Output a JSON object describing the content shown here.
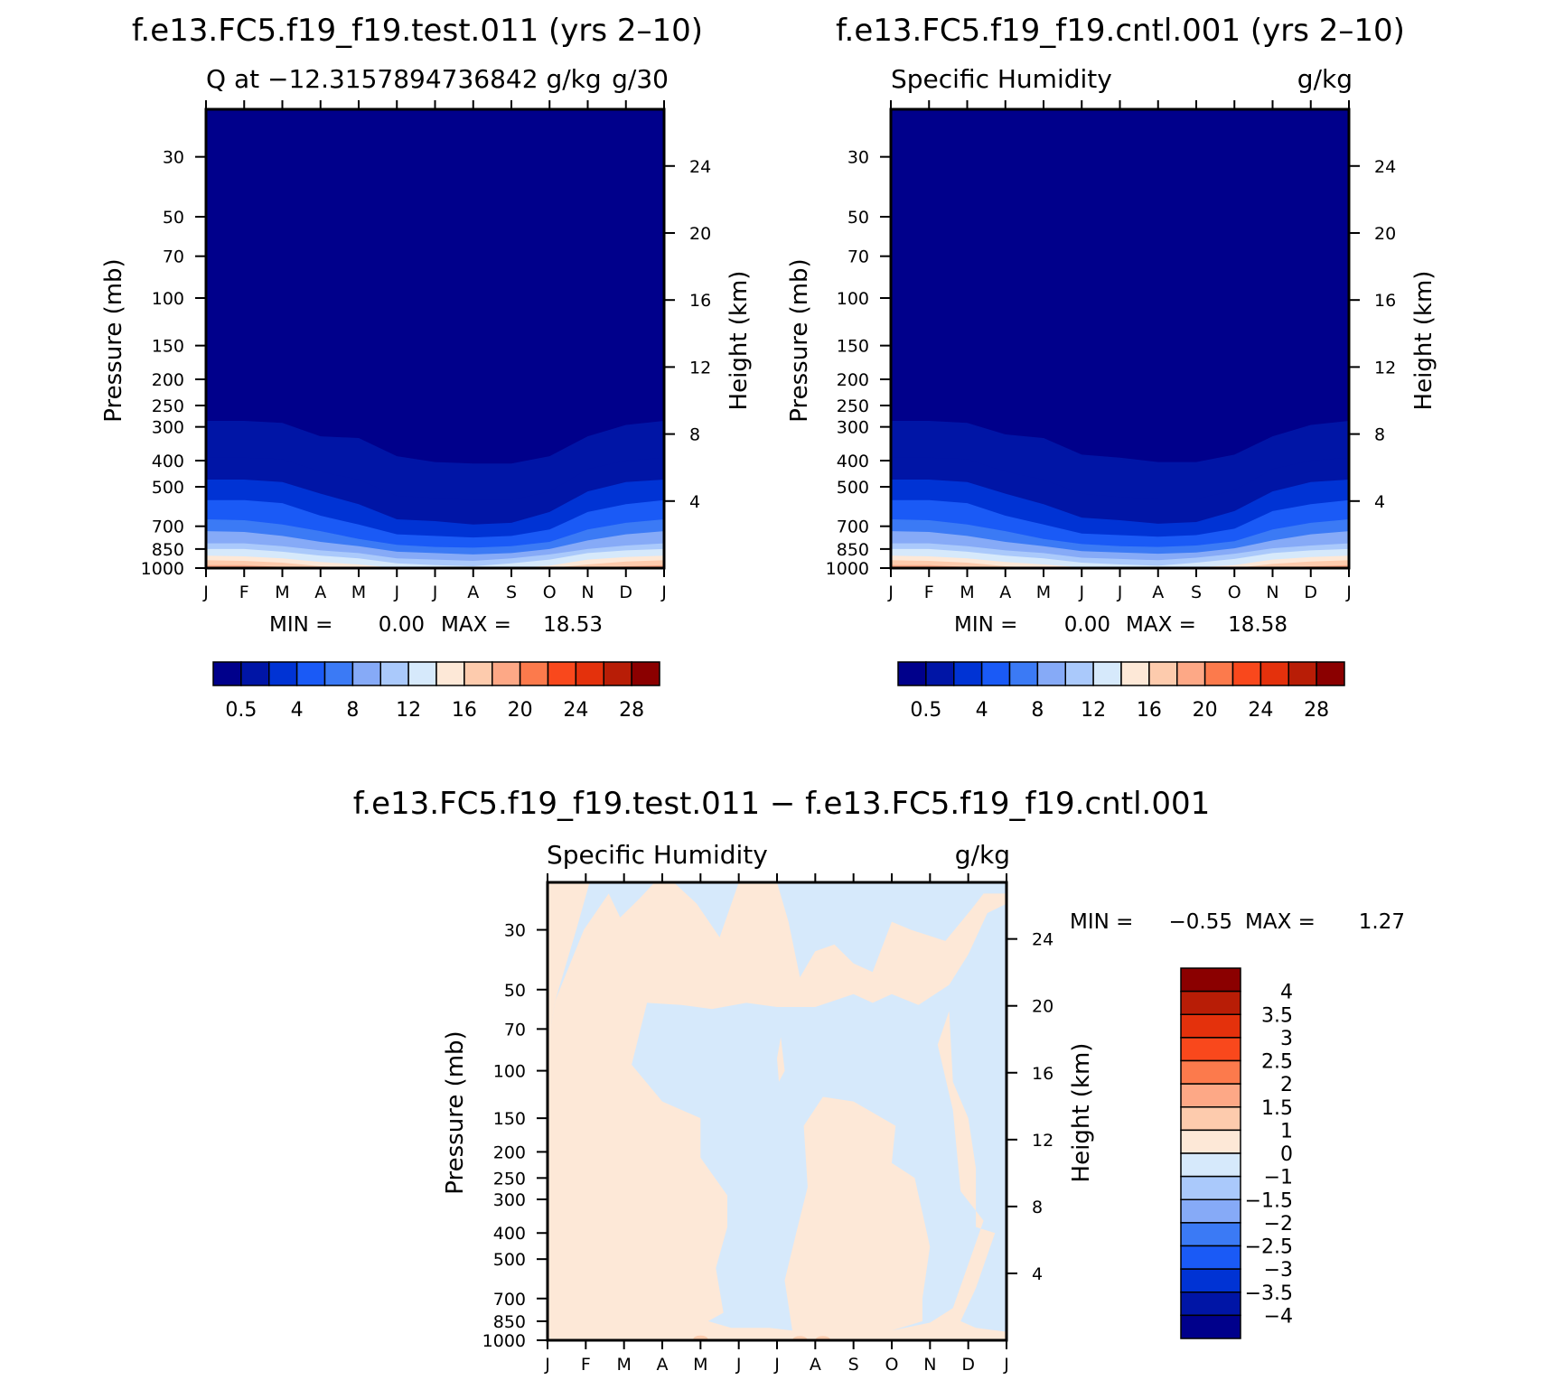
{
  "chart_data": [
    {
      "type": "heatmap",
      "id": "test",
      "title": "f.e13.FC5.f19_f19.test.011 (yrs 2–10)",
      "left_label": "Q at −12.3157894736842 g/kg",
      "left_label_overprint": "g/30",
      "right_label": "",
      "xlabel": "",
      "ylabel": "Pressure (mb)",
      "ylabel_right": "Height (km)",
      "months": [
        "J",
        "F",
        "M",
        "A",
        "M",
        "J",
        "J",
        "A",
        "S",
        "O",
        "N",
        "D",
        "J"
      ],
      "pressure_ticks": [
        "30",
        "50",
        "70",
        "100",
        "150",
        "200",
        "250",
        "300",
        "400",
        "500",
        "700",
        "850",
        "1000"
      ],
      "height_ticks": [
        "24",
        "20",
        "16",
        "12",
        "8",
        "4"
      ],
      "height_km": [
        24,
        20,
        16,
        12,
        8,
        4
      ],
      "ylim_mb": [
        1000,
        20
      ],
      "stats": {
        "min_label": "MIN =",
        "min_value": "0.00",
        "max_label": "MAX =",
        "max_value": "18.53"
      },
      "contour_levels_gkg": [
        0.5,
        1,
        2,
        4,
        6,
        8,
        10,
        12,
        14,
        16,
        18
      ],
      "contour_pressures_mb": {
        "months": [
          "J",
          "F",
          "M",
          "A",
          "M",
          "J",
          "J",
          "A",
          "S",
          "O",
          "N",
          "D",
          "J"
        ],
        "0.5": [
          285,
          285,
          290,
          325,
          330,
          385,
          405,
          410,
          410,
          385,
          325,
          295,
          285
        ],
        "1": [
          390,
          390,
          395,
          440,
          470,
          540,
          550,
          560,
          560,
          520,
          430,
          400,
          390
        ],
        "2": [
          470,
          470,
          480,
          530,
          580,
          660,
          670,
          690,
          680,
          620,
          520,
          480,
          470
        ],
        "4": [
          560,
          560,
          575,
          640,
          690,
          750,
          760,
          770,
          760,
          720,
          620,
          580,
          560
        ],
        "6": [
          660,
          665,
          690,
          730,
          780,
          820,
          835,
          840,
          830,
          800,
          720,
          680,
          660
        ],
        "8": [
          730,
          735,
          760,
          800,
          830,
          870,
          880,
          890,
          880,
          850,
          790,
          750,
          730
        ],
        "10": [
          810,
          810,
          830,
          860,
          880,
          920,
          930,
          940,
          920,
          890,
          850,
          825,
          810
        ],
        "12": [
          850,
          850,
          870,
          900,
          920,
          960,
          975,
          985,
          960,
          930,
          880,
          860,
          850
        ],
        "14": [
          900,
          905,
          920,
          950,
          970,
          1000,
          1000,
          1000,
          1000,
          980,
          930,
          910,
          900
        ],
        "16": [
          935,
          940,
          955,
          985,
          1000,
          1000,
          1000,
          1000,
          1000,
          1000,
          970,
          945,
          935
        ],
        "18": [
          975,
          975,
          990,
          1000,
          1000,
          1000,
          1000,
          1000,
          1000,
          1000,
          1000,
          985,
          975
        ]
      }
    },
    {
      "type": "heatmap",
      "id": "control",
      "title": "f.e13.FC5.f19_f19.cntl.001 (yrs 2–10)",
      "left_label": "Specific Humidity",
      "right_label": "g/kg",
      "ylabel": "Pressure (mb)",
      "ylabel_right": "Height (km)",
      "months": [
        "J",
        "F",
        "M",
        "A",
        "M",
        "J",
        "J",
        "A",
        "S",
        "O",
        "N",
        "D",
        "J"
      ],
      "pressure_ticks": [
        "30",
        "50",
        "70",
        "100",
        "150",
        "200",
        "250",
        "300",
        "400",
        "500",
        "700",
        "850",
        "1000"
      ],
      "height_ticks": [
        "24",
        "20",
        "16",
        "12",
        "8",
        "4"
      ],
      "height_km": [
        24,
        20,
        16,
        12,
        8,
        4
      ],
      "ylim_mb": [
        1000,
        20
      ],
      "stats": {
        "min_label": "MIN =",
        "min_value": "0.00",
        "max_label": "MAX =",
        "max_value": "18.58"
      },
      "contour_levels_gkg": [
        0.5,
        1,
        2,
        4,
        6,
        8,
        10,
        12,
        14,
        16,
        18
      ],
      "contour_pressures_mb": {
        "months": [
          "J",
          "F",
          "M",
          "A",
          "M",
          "J",
          "J",
          "A",
          "S",
          "O",
          "N",
          "D",
          "J"
        ],
        "0.5": [
          285,
          285,
          290,
          320,
          330,
          380,
          390,
          405,
          405,
          380,
          325,
          295,
          285
        ],
        "1": [
          390,
          390,
          395,
          440,
          470,
          530,
          545,
          555,
          555,
          515,
          430,
          400,
          390
        ],
        "2": [
          470,
          470,
          480,
          530,
          580,
          650,
          665,
          685,
          675,
          615,
          520,
          480,
          470
        ],
        "4": [
          560,
          560,
          575,
          640,
          690,
          745,
          755,
          765,
          755,
          715,
          615,
          580,
          560
        ],
        "6": [
          660,
          665,
          690,
          730,
          780,
          815,
          830,
          835,
          825,
          795,
          720,
          680,
          660
        ],
        "8": [
          730,
          735,
          760,
          800,
          830,
          865,
          875,
          885,
          875,
          845,
          790,
          750,
          730
        ],
        "10": [
          810,
          810,
          830,
          860,
          880,
          915,
          925,
          935,
          915,
          885,
          845,
          825,
          810
        ],
        "12": [
          850,
          850,
          870,
          900,
          920,
          955,
          970,
          980,
          955,
          925,
          880,
          860,
          850
        ],
        "14": [
          900,
          905,
          920,
          950,
          970,
          995,
          1000,
          1000,
          995,
          975,
          930,
          910,
          900
        ],
        "16": [
          935,
          940,
          955,
          985,
          1000,
          1000,
          1000,
          1000,
          1000,
          1000,
          965,
          945,
          935
        ],
        "18": [
          975,
          975,
          990,
          1000,
          1000,
          1000,
          1000,
          1000,
          1000,
          1000,
          1000,
          985,
          975
        ]
      }
    },
    {
      "type": "heatmap",
      "id": "difference",
      "title": "f.e13.FC5.f19_f19.test.011 − f.e13.FC5.f19_f19.cntl.001",
      "left_label": "Specific Humidity",
      "right_label": "g/kg",
      "ylabel": "Pressure (mb)",
      "ylabel_right": "Height (km)",
      "months": [
        "J",
        "F",
        "M",
        "A",
        "M",
        "J",
        "J",
        "A",
        "S",
        "O",
        "N",
        "D",
        "J"
      ],
      "pressure_ticks": [
        "30",
        "50",
        "70",
        "100",
        "150",
        "200",
        "250",
        "300",
        "400",
        "500",
        "700",
        "850",
        "1000"
      ],
      "height_ticks": [
        "24",
        "20",
        "16",
        "12",
        "8",
        "4"
      ],
      "height_km": [
        24,
        20,
        16,
        12,
        8,
        4
      ],
      "ylim_mb": [
        1000,
        20
      ],
      "stats": {
        "min_label": "MIN =",
        "min_value": "−0.55",
        "max_label": "MAX =",
        "max_value": "1.27"
      },
      "contour_levels_gkg": [
        0
      ],
      "regions": [
        {
          "sign": "positive",
          "months_pressures_mb": [
            [
              0.0,
              80
            ],
            [
              0.2,
              55
            ],
            [
              0.75,
              30
            ],
            [
              1.1,
              20
            ],
            [
              0.0,
              20
            ],
            [
              0.0,
              80
            ]
          ]
        },
        {
          "sign": "positive",
          "months_pressures_mb": [
            [
              0.0,
              80
            ],
            [
              0.2,
              55
            ],
            [
              0.95,
              30
            ],
            [
              1.6,
              22
            ],
            [
              1.9,
              27
            ],
            [
              2.4,
              23
            ],
            [
              2.8,
              20
            ],
            [
              3.3,
              20
            ],
            [
              3.9,
              24
            ],
            [
              4.5,
              32
            ],
            [
              5.0,
              20
            ],
            [
              6.0,
              20
            ],
            [
              6.3,
              28
            ],
            [
              6.6,
              45
            ],
            [
              7.0,
              36
            ],
            [
              7.5,
              34
            ],
            [
              8.0,
              40
            ],
            [
              8.5,
              43
            ],
            [
              9.0,
              28
            ],
            [
              9.5,
              30
            ],
            [
              10.4,
              33
            ],
            [
              11.1,
              25
            ],
            [
              11.4,
              22
            ],
            [
              12.0,
              22
            ],
            [
              12.0,
              24
            ],
            [
              11.5,
              26
            ],
            [
              11.0,
              37
            ],
            [
              10.5,
              48
            ],
            [
              9.7,
              57
            ],
            [
              9.0,
              52
            ],
            [
              8.5,
              56
            ],
            [
              8.0,
              52
            ],
            [
              7.0,
              58
            ],
            [
              6.0,
              58
            ],
            [
              5.2,
              56
            ],
            [
              4.3,
              59
            ],
            [
              3.5,
              57
            ],
            [
              2.6,
              56
            ],
            [
              2.2,
              95
            ],
            [
              3.0,
              130
            ],
            [
              4.0,
              150
            ],
            [
              4.0,
              210
            ],
            [
              4.7,
              290
            ],
            [
              4.7,
              380
            ],
            [
              4.4,
              540
            ],
            [
              4.6,
              790
            ],
            [
              4.2,
              850
            ],
            [
              4.8,
              900
            ],
            [
              5.8,
              900
            ],
            [
              6.4,
              920
            ],
            [
              6.2,
              600
            ],
            [
              6.5,
              400
            ],
            [
              6.8,
              270
            ],
            [
              6.7,
              160
            ],
            [
              7.2,
              125
            ],
            [
              8.0,
              130
            ],
            [
              9.1,
              160
            ],
            [
              9.0,
              220
            ],
            [
              9.6,
              250
            ],
            [
              10.0,
              450
            ],
            [
              9.8,
              700
            ],
            [
              9.8,
              850
            ],
            [
              9.0,
              920
            ],
            [
              10.0,
              860
            ],
            [
              10.6,
              760
            ],
            [
              11.4,
              360
            ],
            [
              10.8,
              280
            ],
            [
              10.6,
              140
            ],
            [
              10.2,
              80
            ],
            [
              10.5,
              60
            ],
            [
              10.6,
              110
            ],
            [
              11.0,
              150
            ],
            [
              11.2,
              230
            ],
            [
              11.2,
              380
            ],
            [
              11.7,
              400
            ],
            [
              11.2,
              640
            ],
            [
              10.8,
              850
            ],
            [
              11.2,
              900
            ],
            [
              12.0,
              930
            ],
            [
              12.0,
              1000
            ],
            [
              0.0,
              1000
            ],
            [
              0.0,
              80
            ]
          ]
        },
        {
          "sign": "positive",
          "months_pressures_mb": [
            [
              6.0,
              90
            ],
            [
              6.1,
              75
            ],
            [
              6.2,
              100
            ],
            [
              6.05,
              110
            ],
            [
              6.0,
              90
            ]
          ]
        }
      ],
      "negative_fill_hex": "#d6e9fb",
      "positive_fill_hex": "#fde8d7"
    }
  ],
  "colorbar_top": {
    "colors": [
      "#00008b",
      "#0015a6",
      "#0033d4",
      "#1a5af6",
      "#3b7af5",
      "#86aaf7",
      "#aac9fb",
      "#d6e9fb",
      "#fde8d7",
      "#fdcbad",
      "#fda886",
      "#fc7a4c",
      "#f9481c",
      "#e4310c",
      "#b81d06",
      "#8b0000"
    ],
    "labels": [
      "0.5",
      "4",
      "8",
      "12",
      "16",
      "20",
      "24",
      "28"
    ]
  },
  "colorbar_diff": {
    "colors": [
      "#8b0000",
      "#b81d06",
      "#e4310c",
      "#f9481c",
      "#fc7a4c",
      "#fda886",
      "#fdcbad",
      "#fde8d7",
      "#d6e9fb",
      "#aac9fb",
      "#86aaf7",
      "#3b7af5",
      "#1a5af6",
      "#0033d4",
      "#0015a6",
      "#00008b"
    ],
    "labels": [
      "4",
      "3.5",
      "3",
      "2.5",
      "2",
      "1.5",
      "1",
      "0",
      "−1",
      "−1.5",
      "−2",
      "−2.5",
      "−3",
      "−3.5",
      "−4"
    ]
  },
  "field_colors": {
    "0.5": "#00008b",
    "1": "#0015a6",
    "2": "#0033d4",
    "4": "#1a5af6",
    "6": "#3b7af5",
    "8": "#86aaf7",
    "10": "#aac9fb",
    "12": "#d6e9fb",
    "14": "#fde8d7",
    "16": "#fdcbad",
    "18": "#fda886"
  }
}
